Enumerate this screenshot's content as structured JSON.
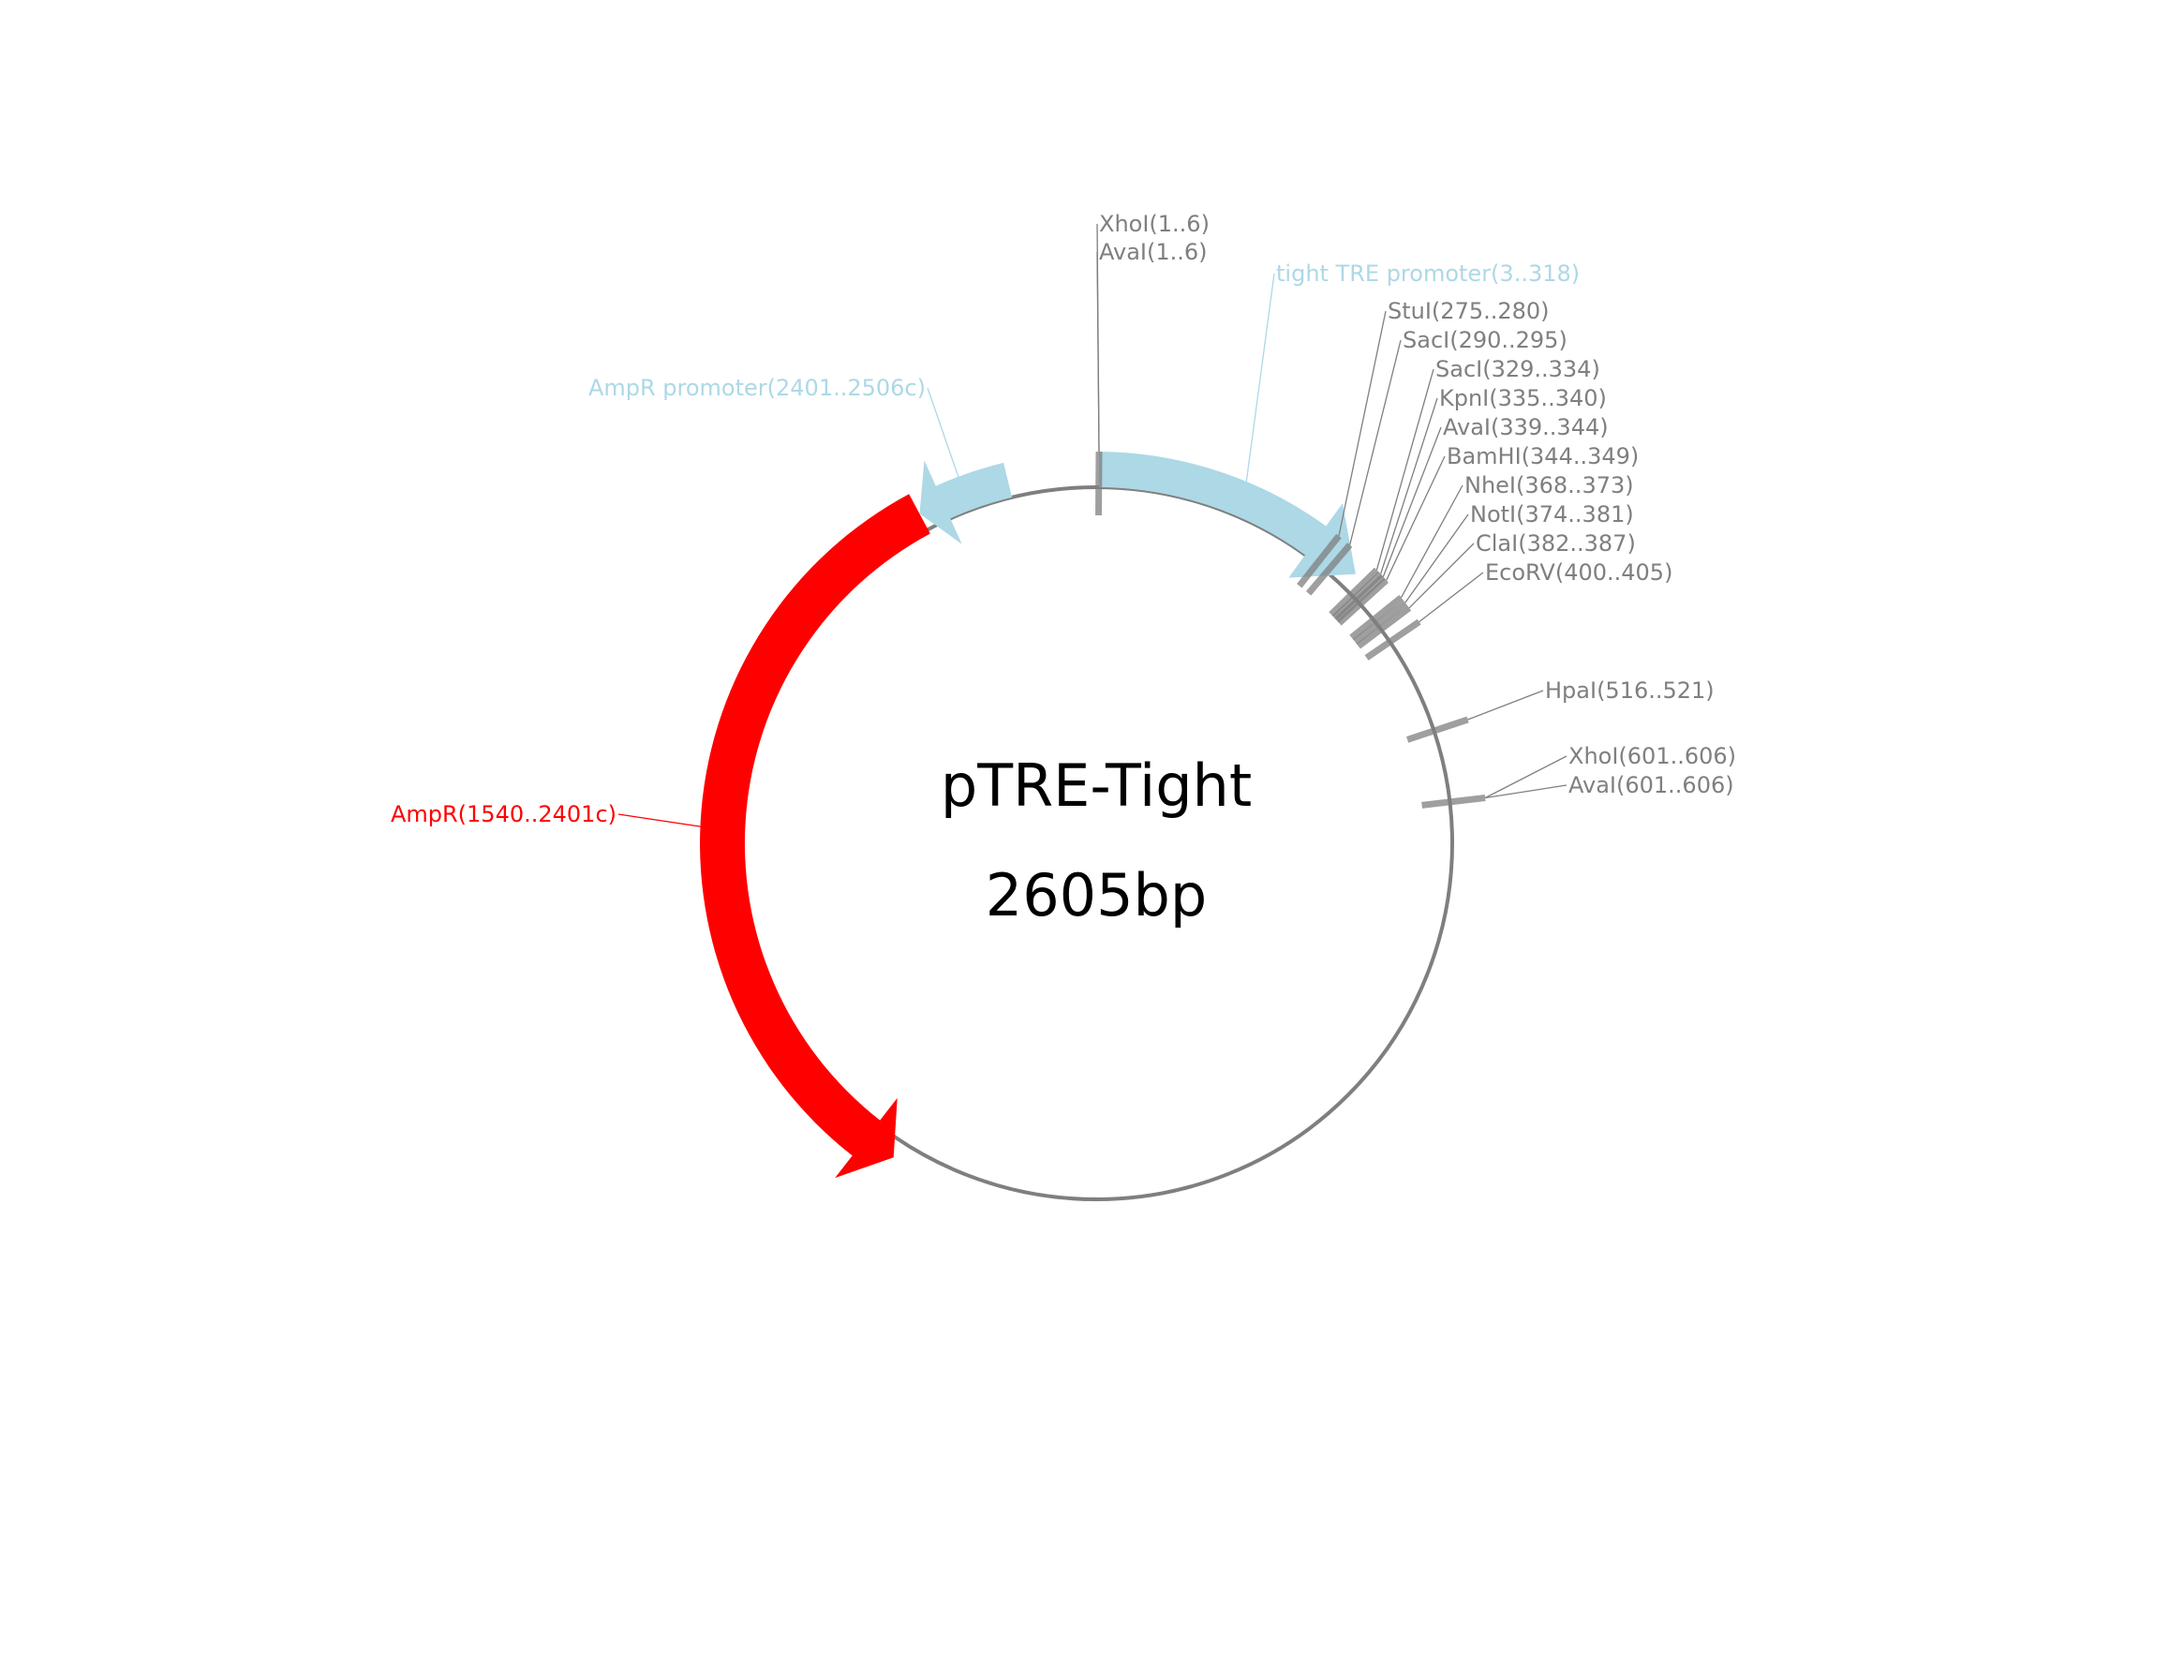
{
  "plasmid": {
    "name": "pTRE-Tight",
    "size_label": "2605bp",
    "length_bp": 2605
  },
  "colors": {
    "backbone": "#7f7f7f",
    "site": "#7f7f7f",
    "promoter": "#add8e6",
    "ampr": "#ff0000",
    "title": "#000000"
  },
  "features": [
    {
      "name": "tight-tre-promoter",
      "label": "tight TRE promoter(3..318)",
      "start": 3,
      "end": 318,
      "strand": 1,
      "color": "#add8e6"
    },
    {
      "name": "ampr-promoter",
      "label": "AmpR promoter(2401..2506c)",
      "start": 2401,
      "end": 2506,
      "strand": -1,
      "color": "#add8e6"
    },
    {
      "name": "ampr",
      "label": "AmpR(1540..2401c)",
      "start": 1540,
      "end": 2401,
      "strand": -1,
      "color": "#ff0000"
    }
  ],
  "sites": [
    {
      "label": "XhoI(1..6)",
      "pos": 3
    },
    {
      "label": "AvaI(1..6)",
      "pos": 3
    },
    {
      "label": "StuI(275..280)",
      "pos": 277
    },
    {
      "label": "SacI(290..295)",
      "pos": 292
    },
    {
      "label": "SacI(329..334)",
      "pos": 331
    },
    {
      "label": "KpnI(335..340)",
      "pos": 337
    },
    {
      "label": "AvaI(339..344)",
      "pos": 341
    },
    {
      "label": "BamHI(344..349)",
      "pos": 346
    },
    {
      "label": "NheI(368..373)",
      "pos": 370
    },
    {
      "label": "NotI(374..381)",
      "pos": 377
    },
    {
      "label": "ClaI(382..387)",
      "pos": 384
    },
    {
      "label": "EcoRV(400..405)",
      "pos": 402
    },
    {
      "label": "HpaI(516..521)",
      "pos": 518
    },
    {
      "label": "XhoI(601..606)",
      "pos": 603
    },
    {
      "label": "AvaI(601..606)",
      "pos": 603
    }
  ]
}
